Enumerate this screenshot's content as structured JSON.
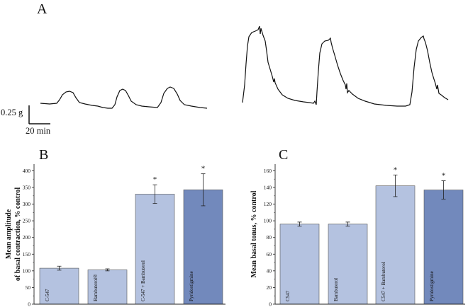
{
  "panel_a": {
    "letter": "A",
    "scale_bar_y": "0.25 g",
    "scale_bar_x": "20 min"
  },
  "chart_data": [
    {
      "panel": "B",
      "type": "bar",
      "ylabel_line1": "Mean amplitude",
      "ylabel_line2": "of basal contraction, % control",
      "categories": [
        "C-547",
        "Bambuterol®",
        "C-547 + Bambuterol",
        "Pyridostigmine"
      ],
      "values": [
        108,
        103,
        330,
        343
      ],
      "errors": [
        6,
        3,
        28,
        48
      ],
      "significant": [
        false,
        false,
        true,
        true
      ],
      "significance_marker": "*",
      "colors": [
        "#b4c2e0",
        "#b4c2e0",
        "#b4c2e0",
        "#7289bc"
      ],
      "ylim": [
        0,
        420
      ],
      "yticks": [
        0,
        50,
        100,
        150,
        200,
        250,
        300,
        350,
        400
      ],
      "grid": false
    },
    {
      "panel": "C",
      "type": "bar",
      "ylabel_line1": "Mean basal tonus, % control",
      "ylabel_line2": "",
      "categories": [
        "C547",
        "Bambuterol",
        "C547 + Bambuterol",
        "Pyridostigmine"
      ],
      "values": [
        96,
        96,
        142,
        137
      ],
      "errors": [
        2.5,
        2.5,
        13,
        11
      ],
      "significant": [
        false,
        false,
        true,
        true
      ],
      "significance_marker": "*",
      "colors": [
        "#b4c2e0",
        "#b4c2e0",
        "#b4c2e0",
        "#7289bc"
      ],
      "ylim": [
        0,
        168
      ],
      "yticks": [
        0,
        20,
        40,
        60,
        80,
        100,
        120,
        140,
        160
      ],
      "grid": false
    }
  ]
}
